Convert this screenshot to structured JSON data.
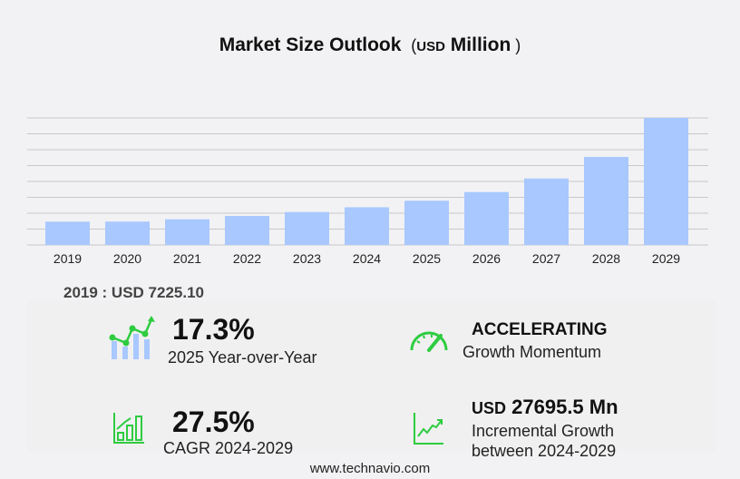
{
  "chart_data": {
    "type": "bar",
    "title": "Market Size Outlook",
    "unit_prefix": "USD",
    "unit_suffix": "Million",
    "categories": [
      "2019",
      "2020",
      "2021",
      "2022",
      "2023",
      "2024",
      "2025",
      "2026",
      "2027",
      "2028",
      "2029"
    ],
    "values": [
      7225.1,
      7250,
      7950,
      9000,
      10200,
      11686,
      13708,
      16400,
      20600,
      27300,
      39381
    ],
    "ylim": [
      0,
      39381
    ],
    "grid": true,
    "bar_color": "#a8c8ff",
    "grid_color": "#c8c8cc"
  },
  "first_value": "2019 : USD  7225.10",
  "stats": {
    "yoy": {
      "value": "17.3%",
      "label": "2025 Year-over-Year"
    },
    "momentum": {
      "value": "ACCELERATING",
      "label": "Growth Momentum"
    },
    "cagr": {
      "value": "27.5%",
      "label": "CAGR 2024-2029"
    },
    "incremental": {
      "prefix": "USD",
      "value": "27695.5 Mn",
      "label1": "Incremental Growth",
      "label2": "between 2024-2029"
    }
  },
  "accent_color": "#2ecc40",
  "footer": "www.technavio.com"
}
